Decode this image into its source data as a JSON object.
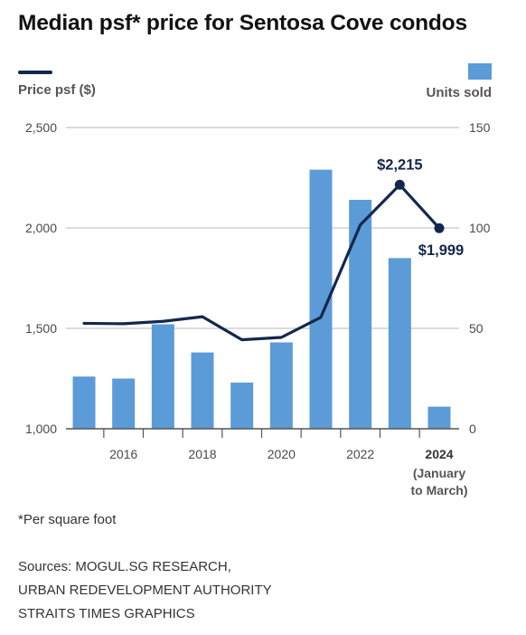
{
  "title": "Median psf* price for Sentosa Cove condos",
  "legend": {
    "line_label": "Price psf ($)",
    "bar_label": "Units sold",
    "line_color": "#13274d",
    "bar_color": "#5b9bd8"
  },
  "footnote": "*Per square foot",
  "sources": [
    "Sources: MOGUL.SG RESEARCH,",
    "URBAN REDEVELOPMENT AUTHORITY",
    "STRAITS TIMES GRAPHICS"
  ],
  "chart_data": {
    "type": "bar+line",
    "x": [
      2015,
      2016,
      2017,
      2018,
      2019,
      2020,
      2021,
      2022,
      2023,
      2024
    ],
    "x_tick_labels": [
      {
        "x": 2016,
        "label": "2016",
        "bold": false
      },
      {
        "x": 2018,
        "label": "2018",
        "bold": false
      },
      {
        "x": 2020,
        "label": "2020",
        "bold": false
      },
      {
        "x": 2022,
        "label": "2022",
        "bold": false
      },
      {
        "x": 2024,
        "label": "2024",
        "bold": true,
        "sublabel": [
          "(January",
          "to March)"
        ]
      }
    ],
    "series": [
      {
        "name": "Units sold",
        "kind": "bar",
        "axis": "right",
        "values": [
          26,
          25,
          52,
          38,
          23,
          43,
          129,
          114,
          85,
          11
        ]
      },
      {
        "name": "Price psf ($)",
        "kind": "line",
        "axis": "left",
        "values": [
          1525,
          1523,
          1535,
          1558,
          1443,
          1455,
          1555,
          2015,
          2215,
          1999
        ]
      }
    ],
    "left_axis": {
      "min": 1000,
      "max": 2500,
      "ticks": [
        1000,
        1500,
        2000,
        2500
      ],
      "tick_labels": [
        "1,000",
        "1,500",
        "2,000",
        "2,500"
      ]
    },
    "right_axis": {
      "min": 0,
      "max": 150,
      "ticks": [
        0,
        50,
        100,
        150
      ],
      "tick_labels": [
        "0",
        "50",
        "100",
        "150"
      ]
    },
    "annotations": [
      {
        "x": 2023,
        "series": "Price psf ($)",
        "text": "$2,215",
        "position": "above"
      },
      {
        "x": 2024,
        "series": "Price psf ($)",
        "text": "$1,999",
        "position": "below"
      }
    ],
    "grid": true
  }
}
